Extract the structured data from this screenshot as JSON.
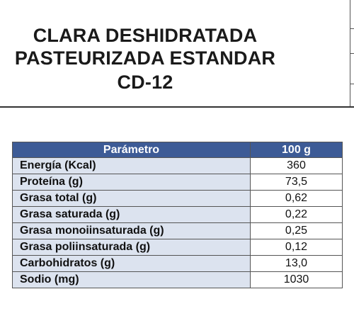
{
  "title": {
    "line1": "CLARA DESHIDRATADA",
    "line2": "PASTEURIZADA ESTANDAR",
    "line3": "CD-12"
  },
  "table": {
    "headers": [
      "Parámetro",
      "100 g"
    ],
    "rows": [
      {
        "param": "Energía (Kcal)",
        "value": "360"
      },
      {
        "param": "Proteína (g)",
        "value": "73,5"
      },
      {
        "param": "Grasa total (g)",
        "value": "0,62"
      },
      {
        "param": "Grasa saturada (g)",
        "value": "0,22"
      },
      {
        "param": "Grasa monoiinsaturada (g)",
        "value": "0,25"
      },
      {
        "param": "Grasa poliinsaturada (g)",
        "value": "0,12"
      },
      {
        "param": "Carbohidratos (g)",
        "value": "13,0"
      },
      {
        "param": "Sodio (mg)",
        "value": "1030"
      }
    ]
  },
  "colors": {
    "header_bg": "#3d5b96",
    "param_bg": "#dce3ef"
  }
}
